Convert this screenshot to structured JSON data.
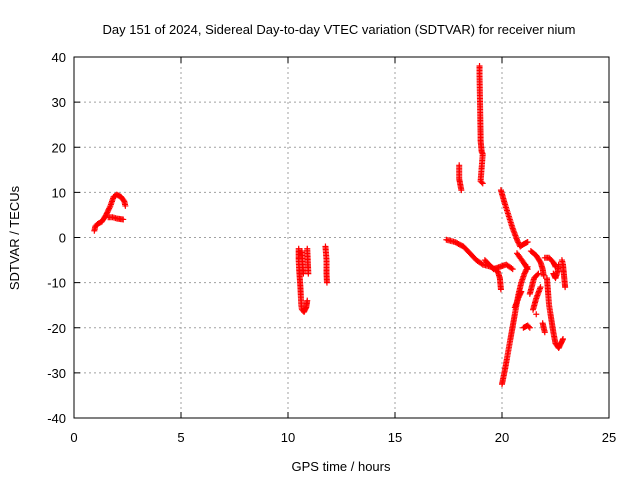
{
  "chart_data": {
    "type": "scatter",
    "title": "Day 151 of 2024, Sidereal Day-to-day VTEC variation (SDTVAR) for receiver nium",
    "xlabel": "GPS time / hours",
    "ylabel": "SDTVAR / TECUs",
    "xlim": [
      0,
      25
    ],
    "ylim": [
      -40,
      40
    ],
    "xticks": [
      0,
      5,
      10,
      15,
      20,
      25
    ],
    "yticks": [
      -40,
      -30,
      -20,
      -10,
      0,
      10,
      20,
      30,
      40
    ],
    "grid": true,
    "marker": "+",
    "color": "#ff0000",
    "segments": [
      [
        [
          0.95,
          1.5
        ],
        [
          1.0,
          2.5
        ],
        [
          1.1,
          3.0
        ],
        [
          1.3,
          3.5
        ],
        [
          1.5,
          5.0
        ],
        [
          1.7,
          7.0
        ],
        [
          1.85,
          9.0
        ],
        [
          2.0,
          9.5
        ],
        [
          2.2,
          9.0
        ],
        [
          2.35,
          8.0
        ],
        [
          2.4,
          7.0
        ]
      ],
      [
        [
          1.6,
          4.5
        ],
        [
          1.8,
          4.5
        ],
        [
          2.0,
          4.2
        ],
        [
          2.3,
          4.0
        ]
      ],
      [
        [
          10.5,
          -2.5
        ],
        [
          10.5,
          -5.0
        ],
        [
          10.52,
          -7.0
        ],
        [
          10.55,
          -9.0
        ],
        [
          10.58,
          -11.0
        ],
        [
          10.6,
          -13.0
        ],
        [
          10.62,
          -15.0
        ],
        [
          10.65,
          -16.0
        ],
        [
          10.75,
          -16.5
        ],
        [
          10.85,
          -15.5
        ],
        [
          10.9,
          -14.0
        ]
      ],
      [
        [
          10.65,
          -3.0
        ],
        [
          10.68,
          -6.0
        ],
        [
          10.72,
          -8.0
        ]
      ],
      [
        [
          10.9,
          -2.5
        ],
        [
          10.95,
          -8.0
        ]
      ],
      [
        [
          11.75,
          -2.0
        ],
        [
          11.8,
          -5.0
        ],
        [
          11.8,
          -8.0
        ],
        [
          11.82,
          -10.0
        ]
      ],
      [
        [
          17.4,
          -0.5
        ],
        [
          17.8,
          -1.0
        ],
        [
          18.2,
          -2.0
        ],
        [
          18.5,
          -3.5
        ],
        [
          18.8,
          -5.0
        ],
        [
          19.1,
          -6.0
        ],
        [
          19.5,
          -6.5
        ],
        [
          19.8,
          -7.5
        ],
        [
          19.9,
          -9.0
        ],
        [
          19.95,
          -11.5
        ]
      ],
      [
        [
          18.0,
          16.0
        ],
        [
          18.0,
          13.0
        ],
        [
          18.1,
          10.5
        ]
      ],
      [
        [
          18.95,
          38.0
        ],
        [
          18.95,
          36.0
        ],
        [
          19.0,
          22.5
        ],
        [
          19.0,
          21.5
        ],
        [
          19.05,
          19.0
        ],
        [
          19.1,
          18.5
        ],
        [
          19.0,
          12.5
        ],
        [
          19.1,
          12.0
        ]
      ],
      [
        [
          19.95,
          10.5
        ],
        [
          20.1,
          8.0
        ],
        [
          20.3,
          5.0
        ],
        [
          20.5,
          2.0
        ],
        [
          20.7,
          -0.5
        ],
        [
          20.85,
          -2.0
        ],
        [
          21.0,
          -1.5
        ],
        [
          21.2,
          -1.0
        ]
      ],
      [
        [
          19.2,
          -5.0
        ],
        [
          19.4,
          -6.0
        ],
        [
          19.6,
          -7.0
        ],
        [
          19.9,
          -6.5
        ],
        [
          20.2,
          -6.0
        ],
        [
          20.5,
          -7.0
        ]
      ],
      [
        [
          20.0,
          -32.5
        ],
        [
          20.15,
          -29.0
        ],
        [
          20.3,
          -25.0
        ],
        [
          20.45,
          -21.0
        ],
        [
          20.6,
          -17.0
        ],
        [
          20.75,
          -13.0
        ],
        [
          20.9,
          -10.0
        ],
        [
          21.05,
          -8.0
        ],
        [
          21.2,
          -6.5
        ]
      ],
      [
        [
          20.7,
          -3.5
        ],
        [
          21.0,
          -5.5
        ],
        [
          21.2,
          -7.0
        ]
      ],
      [
        [
          21.35,
          -3.0
        ],
        [
          21.6,
          -4.0
        ],
        [
          21.8,
          -5.5
        ],
        [
          21.9,
          -7.0
        ],
        [
          21.95,
          -8.5
        ]
      ],
      [
        [
          21.3,
          -12.5
        ],
        [
          21.5,
          -9.0
        ],
        [
          21.7,
          -8.0
        ]
      ],
      [
        [
          20.6,
          -15.5
        ],
        [
          20.8,
          -13.0
        ],
        [
          20.9,
          -12.0
        ]
      ],
      [
        [
          21.45,
          -16.0
        ],
        [
          21.6,
          -13.5
        ],
        [
          21.8,
          -11.0
        ]
      ],
      [
        [
          21.0,
          -20.0
        ],
        [
          21.2,
          -19.5
        ],
        [
          21.3,
          -20.0
        ]
      ],
      [
        [
          21.6,
          -17.0
        ]
      ],
      [
        [
          21.9,
          -19.0
        ],
        [
          22.0,
          -21.0
        ]
      ],
      [
        [
          22.0,
          -4.5
        ],
        [
          22.2,
          -4.5
        ],
        [
          22.4,
          -5.5
        ],
        [
          22.5,
          -6.5
        ]
      ],
      [
        [
          22.1,
          -9.0
        ],
        [
          22.15,
          -12.0
        ],
        [
          22.2,
          -15.0
        ],
        [
          22.3,
          -18.0
        ],
        [
          22.4,
          -21.0
        ],
        [
          22.5,
          -23.5
        ],
        [
          22.65,
          -24.5
        ],
        [
          22.75,
          -23.5
        ],
        [
          22.85,
          -22.5
        ]
      ],
      [
        [
          22.4,
          -8.0
        ],
        [
          22.5,
          -9.0
        ],
        [
          22.6,
          -7.5
        ],
        [
          22.65,
          -6.0
        ]
      ],
      [
        [
          22.8,
          -5.0
        ],
        [
          22.85,
          -6.0
        ],
        [
          22.9,
          -8.5
        ],
        [
          22.95,
          -11.0
        ]
      ]
    ]
  }
}
